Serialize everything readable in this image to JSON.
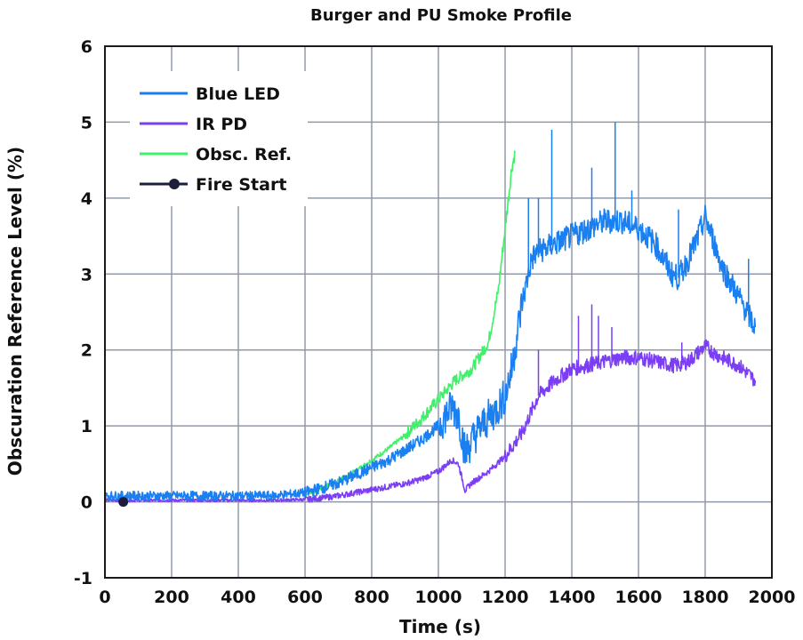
{
  "chart_data": {
    "type": "line",
    "title": "Burger and PU Smoke Profile",
    "xlabel": "Time (s)",
    "ylabel": "Obscuration Reference Level (%)",
    "xlim": [
      0,
      2000
    ],
    "ylim": [
      -1,
      6
    ],
    "xticks": [
      0,
      200,
      400,
      600,
      800,
      1000,
      1200,
      1400,
      1600,
      1800,
      2000
    ],
    "yticks": [
      -1,
      0,
      1,
      2,
      3,
      4,
      5,
      6
    ],
    "grid": true,
    "legend_position": "top-left",
    "series": [
      {
        "name": "Blue LED",
        "color": "#1a7ff0",
        "x": [
          0,
          100,
          200,
          300,
          400,
          500,
          550,
          600,
          650,
          700,
          750,
          800,
          850,
          900,
          950,
          1000,
          1040,
          1060,
          1080,
          1100,
          1120,
          1150,
          1180,
          1200,
          1220,
          1250,
          1280,
          1300,
          1350,
          1400,
          1450,
          1500,
          1550,
          1600,
          1650,
          1700,
          1720,
          1750,
          1780,
          1800,
          1820,
          1850,
          1900,
          1950
        ],
        "y": [
          0.08,
          0.08,
          0.08,
          0.08,
          0.08,
          0.08,
          0.1,
          0.12,
          0.18,
          0.25,
          0.35,
          0.45,
          0.55,
          0.68,
          0.82,
          1.0,
          1.25,
          1.15,
          0.65,
          0.8,
          0.95,
          1.1,
          1.25,
          1.4,
          1.75,
          2.6,
          3.2,
          3.3,
          3.4,
          3.5,
          3.6,
          3.7,
          3.7,
          3.6,
          3.4,
          3.0,
          2.95,
          3.2,
          3.5,
          3.75,
          3.5,
          3.1,
          2.7,
          2.3
        ],
        "spikes": [
          [
            1270,
            4.0
          ],
          [
            1300,
            4.0
          ],
          [
            1340,
            4.9
          ],
          [
            1460,
            4.4
          ],
          [
            1530,
            5.0
          ],
          [
            1580,
            4.1
          ],
          [
            1720,
            3.85
          ],
          [
            1930,
            3.2
          ]
        ]
      },
      {
        "name": "IR PD",
        "color": "#7b3ef5",
        "x": [
          0,
          100,
          200,
          300,
          400,
          500,
          600,
          650,
          700,
          750,
          800,
          850,
          900,
          950,
          1000,
          1040,
          1060,
          1080,
          1100,
          1150,
          1200,
          1250,
          1300,
          1350,
          1400,
          1450,
          1500,
          1550,
          1600,
          1650,
          1700,
          1720,
          1750,
          1800,
          1830,
          1850,
          1900,
          1950
        ],
        "y": [
          0.02,
          0.02,
          0.02,
          0.02,
          0.02,
          0.02,
          0.03,
          0.05,
          0.08,
          0.12,
          0.16,
          0.2,
          0.24,
          0.3,
          0.4,
          0.55,
          0.5,
          0.15,
          0.25,
          0.4,
          0.6,
          0.9,
          1.4,
          1.6,
          1.75,
          1.8,
          1.85,
          1.9,
          1.9,
          1.85,
          1.8,
          1.8,
          1.85,
          2.05,
          1.95,
          1.9,
          1.8,
          1.6
        ],
        "spikes": [
          [
            1300,
            2.0
          ],
          [
            1420,
            2.45
          ],
          [
            1460,
            2.6
          ],
          [
            1480,
            2.45
          ],
          [
            1520,
            2.3
          ],
          [
            1730,
            2.1
          ]
        ]
      },
      {
        "name": "Obsc. Ref.",
        "color": "#3ff06a",
        "x": [
          600,
          650,
          700,
          750,
          800,
          850,
          900,
          950,
          1000,
          1050,
          1100,
          1150,
          1180,
          1200,
          1220,
          1230
        ],
        "y": [
          0.1,
          0.18,
          0.28,
          0.4,
          0.55,
          0.7,
          0.88,
          1.1,
          1.35,
          1.6,
          1.75,
          2.1,
          2.8,
          3.6,
          4.4,
          4.6
        ]
      },
      {
        "name": "Fire Start",
        "color": "#1b1f3b",
        "x": [
          55
        ],
        "y": [
          0
        ]
      }
    ]
  }
}
